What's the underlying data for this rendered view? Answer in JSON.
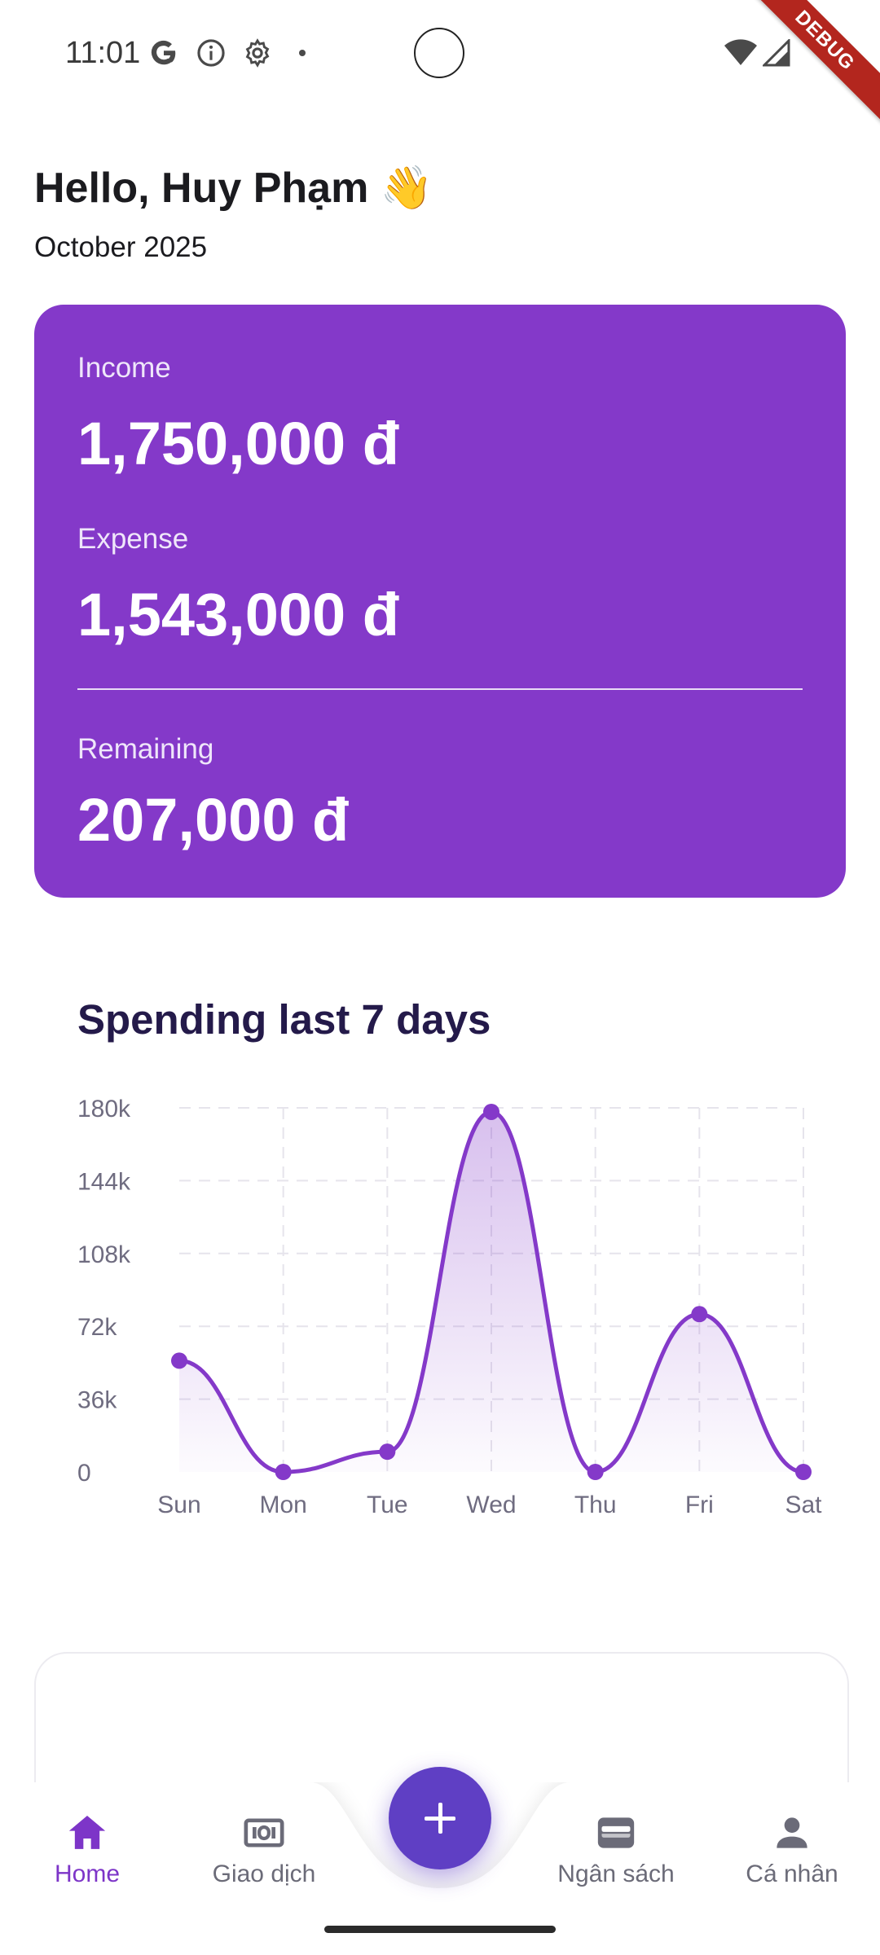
{
  "status_bar": {
    "time": "11:01",
    "icons": [
      "google-icon",
      "info-icon",
      "settings-icon",
      "dot-icon",
      "wifi-icon",
      "signal-icon"
    ],
    "debug_banner": "DEBUG"
  },
  "header": {
    "greeting": "Hello, Huy Phạm 👋",
    "month": "October 2025"
  },
  "summary": {
    "income_label": "Income",
    "income_value": "1,750,000 đ",
    "expense_label": "Expense",
    "expense_value": "1,543,000 đ",
    "remaining_label": "Remaining",
    "remaining_value": "207,000 đ"
  },
  "chart": {
    "title": "Spending last 7 days",
    "accent_color": "#8439c9"
  },
  "chart_data": {
    "type": "area",
    "title": "Spending last 7 days",
    "categories": [
      "Sun",
      "Mon",
      "Tue",
      "Wed",
      "Thu",
      "Fri",
      "Sat"
    ],
    "values": [
      55000,
      0,
      10000,
      178000,
      0,
      78000,
      0
    ],
    "y_ticks": [
      "0",
      "36k",
      "72k",
      "108k",
      "144k",
      "180k"
    ],
    "ylim": [
      0,
      180000
    ],
    "grid": true
  },
  "bottom_nav": {
    "items": [
      {
        "label": "Home",
        "icon": "home-icon",
        "active": true
      },
      {
        "label": "Giao dịch",
        "icon": "transactions-icon",
        "active": false
      },
      {
        "label": "Ngân sách",
        "icon": "wallet-icon",
        "active": false
      },
      {
        "label": "Cá nhân",
        "icon": "person-icon",
        "active": false
      }
    ],
    "fab_icon": "plus-icon",
    "active_color": "#7d35c8",
    "fab_color": "#5f3fc4"
  }
}
